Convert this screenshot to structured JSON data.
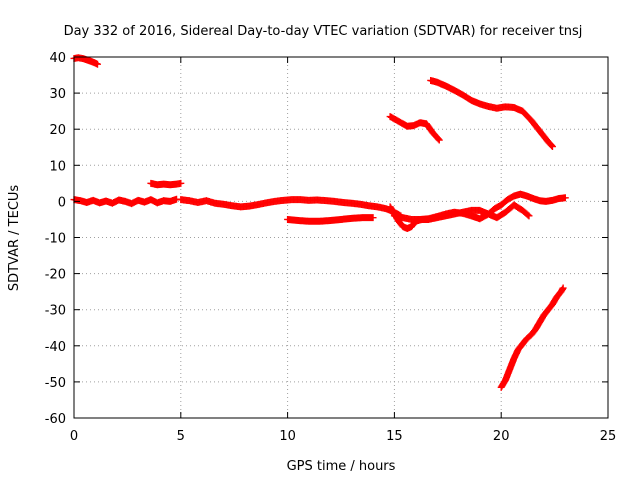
{
  "chart_data": {
    "type": "scatter",
    "title": "Day 332 of 2016, Sidereal Day-to-day VTEC variation (SDTVAR) for receiver tnsj",
    "xlabel": "GPS time / hours",
    "ylabel": "SDTVAR / TECUs",
    "xlim": [
      0,
      25
    ],
    "ylim": [
      -60,
      40
    ],
    "xticks": [
      0,
      5,
      10,
      15,
      20,
      25
    ],
    "yticks": [
      -60,
      -50,
      -40,
      -30,
      -20,
      -10,
      0,
      10,
      20,
      30,
      40
    ],
    "grid": true,
    "color": "#ff0000",
    "marker": "plus",
    "series": [
      {
        "points": [
          [
            0.0,
            39.6
          ],
          [
            0.2,
            39.8
          ],
          [
            0.4,
            39.6
          ],
          [
            0.6,
            39.2
          ],
          [
            0.8,
            38.8
          ],
          [
            1.0,
            38.3
          ],
          [
            1.1,
            38.0
          ]
        ]
      },
      {
        "points": [
          [
            0.0,
            0.5
          ],
          [
            0.3,
            0.2
          ],
          [
            0.6,
            -0.3
          ],
          [
            0.9,
            0.3
          ],
          [
            1.2,
            -0.4
          ],
          [
            1.5,
            0.1
          ],
          [
            1.8,
            -0.5
          ],
          [
            2.1,
            0.4
          ],
          [
            2.4,
            0.0
          ],
          [
            2.7,
            -0.6
          ],
          [
            3.0,
            0.3
          ],
          [
            3.3,
            -0.2
          ],
          [
            3.6,
            0.5
          ],
          [
            3.9,
            -0.4
          ],
          [
            4.2,
            0.2
          ],
          [
            4.5,
            0.0
          ],
          [
            4.8,
            0.6
          ]
        ]
      },
      {
        "points": [
          [
            3.6,
            5.0
          ],
          [
            3.9,
            4.6
          ],
          [
            4.2,
            4.8
          ],
          [
            4.5,
            4.6
          ],
          [
            4.8,
            4.8
          ],
          [
            5.0,
            5.0
          ]
        ]
      },
      {
        "points": [
          [
            5.0,
            0.5
          ],
          [
            5.4,
            0.2
          ],
          [
            5.8,
            -0.3
          ],
          [
            6.2,
            0.2
          ],
          [
            6.6,
            -0.5
          ],
          [
            7.0,
            -0.8
          ],
          [
            7.4,
            -1.2
          ],
          [
            7.8,
            -1.5
          ],
          [
            8.2,
            -1.3
          ],
          [
            8.6,
            -0.9
          ],
          [
            9.0,
            -0.4
          ],
          [
            9.4,
            0.0
          ],
          [
            9.8,
            0.3
          ],
          [
            10.2,
            0.5
          ],
          [
            10.6,
            0.5
          ],
          [
            11.0,
            0.3
          ],
          [
            11.4,
            0.4
          ],
          [
            11.8,
            0.2
          ],
          [
            12.2,
            0.0
          ],
          [
            12.6,
            -0.3
          ],
          [
            13.0,
            -0.5
          ],
          [
            13.4,
            -0.8
          ],
          [
            13.8,
            -1.2
          ],
          [
            14.2,
            -1.5
          ],
          [
            14.6,
            -2.0
          ],
          [
            15.0,
            -3.0
          ],
          [
            15.3,
            -4.0
          ]
        ]
      },
      {
        "points": [
          [
            10.0,
            -5.0
          ],
          [
            10.5,
            -5.3
          ],
          [
            11.0,
            -5.5
          ],
          [
            11.5,
            -5.5
          ],
          [
            12.0,
            -5.3
          ],
          [
            12.5,
            -5.0
          ],
          [
            13.0,
            -4.7
          ],
          [
            13.5,
            -4.5
          ],
          [
            14.0,
            -4.5
          ]
        ]
      },
      {
        "points": [
          [
            14.8,
            -1.5
          ],
          [
            15.0,
            -3.5
          ],
          [
            15.2,
            -5.5
          ],
          [
            15.4,
            -7.0
          ],
          [
            15.6,
            -7.5
          ],
          [
            15.8,
            -7.0
          ],
          [
            16.0,
            -5.5
          ],
          [
            16.3,
            -5.0
          ],
          [
            16.6,
            -5.0
          ],
          [
            17.0,
            -4.5
          ],
          [
            17.4,
            -4.0
          ],
          [
            17.8,
            -3.5
          ],
          [
            18.2,
            -3.0
          ],
          [
            18.6,
            -2.5
          ],
          [
            19.0,
            -2.5
          ],
          [
            19.4,
            -3.5
          ],
          [
            19.8,
            -4.5
          ],
          [
            20.2,
            -3.0
          ],
          [
            20.6,
            -1.0
          ],
          [
            21.0,
            -2.5
          ],
          [
            21.3,
            -4.0
          ]
        ]
      },
      {
        "points": [
          [
            15.0,
            -4.0
          ],
          [
            15.4,
            -4.5
          ],
          [
            15.8,
            -5.0
          ],
          [
            16.2,
            -5.0
          ],
          [
            16.6,
            -4.8
          ],
          [
            17.0,
            -4.2
          ],
          [
            17.4,
            -3.5
          ],
          [
            17.8,
            -3.0
          ],
          [
            18.2,
            -3.3
          ],
          [
            18.6,
            -4.0
          ],
          [
            19.0,
            -4.8
          ],
          [
            19.4,
            -3.5
          ],
          [
            19.7,
            -2.0
          ],
          [
            20.0,
            -1.0
          ],
          [
            20.3,
            0.5
          ],
          [
            20.6,
            1.5
          ],
          [
            20.9,
            2.0
          ],
          [
            21.2,
            1.5
          ],
          [
            21.5,
            0.8
          ],
          [
            21.8,
            0.2
          ],
          [
            22.1,
            0.0
          ],
          [
            22.4,
            0.3
          ],
          [
            22.7,
            0.8
          ],
          [
            23.0,
            1.0
          ]
        ]
      },
      {
        "points": [
          [
            14.8,
            23.5
          ],
          [
            15.1,
            22.5
          ],
          [
            15.4,
            21.5
          ],
          [
            15.6,
            20.8
          ],
          [
            15.9,
            21.0
          ],
          [
            16.2,
            21.8
          ],
          [
            16.5,
            21.5
          ],
          [
            16.8,
            19.0
          ],
          [
            17.1,
            17.0
          ]
        ]
      },
      {
        "points": [
          [
            16.7,
            33.5
          ],
          [
            17.0,
            33.0
          ],
          [
            17.4,
            32.0
          ],
          [
            17.8,
            30.8
          ],
          [
            18.2,
            29.5
          ],
          [
            18.6,
            28.0
          ],
          [
            19.0,
            27.0
          ],
          [
            19.4,
            26.3
          ],
          [
            19.8,
            25.8
          ],
          [
            20.2,
            26.2
          ],
          [
            20.6,
            26.0
          ],
          [
            21.0,
            25.0
          ],
          [
            21.4,
            22.5
          ],
          [
            21.8,
            19.5
          ],
          [
            22.2,
            16.5
          ],
          [
            22.4,
            15.2
          ]
        ]
      },
      {
        "points": [
          [
            20.0,
            -51.5
          ],
          [
            20.2,
            -49.5
          ],
          [
            20.4,
            -46.5
          ],
          [
            20.6,
            -43.5
          ],
          [
            20.8,
            -41.0
          ],
          [
            21.0,
            -39.5
          ],
          [
            21.2,
            -38.0
          ],
          [
            21.4,
            -37.0
          ],
          [
            21.6,
            -35.5
          ],
          [
            21.8,
            -33.5
          ],
          [
            22.0,
            -31.5
          ],
          [
            22.2,
            -30.0
          ],
          [
            22.4,
            -28.5
          ],
          [
            22.6,
            -26.5
          ],
          [
            22.8,
            -25.0
          ],
          [
            22.9,
            -24.0
          ]
        ]
      }
    ]
  }
}
